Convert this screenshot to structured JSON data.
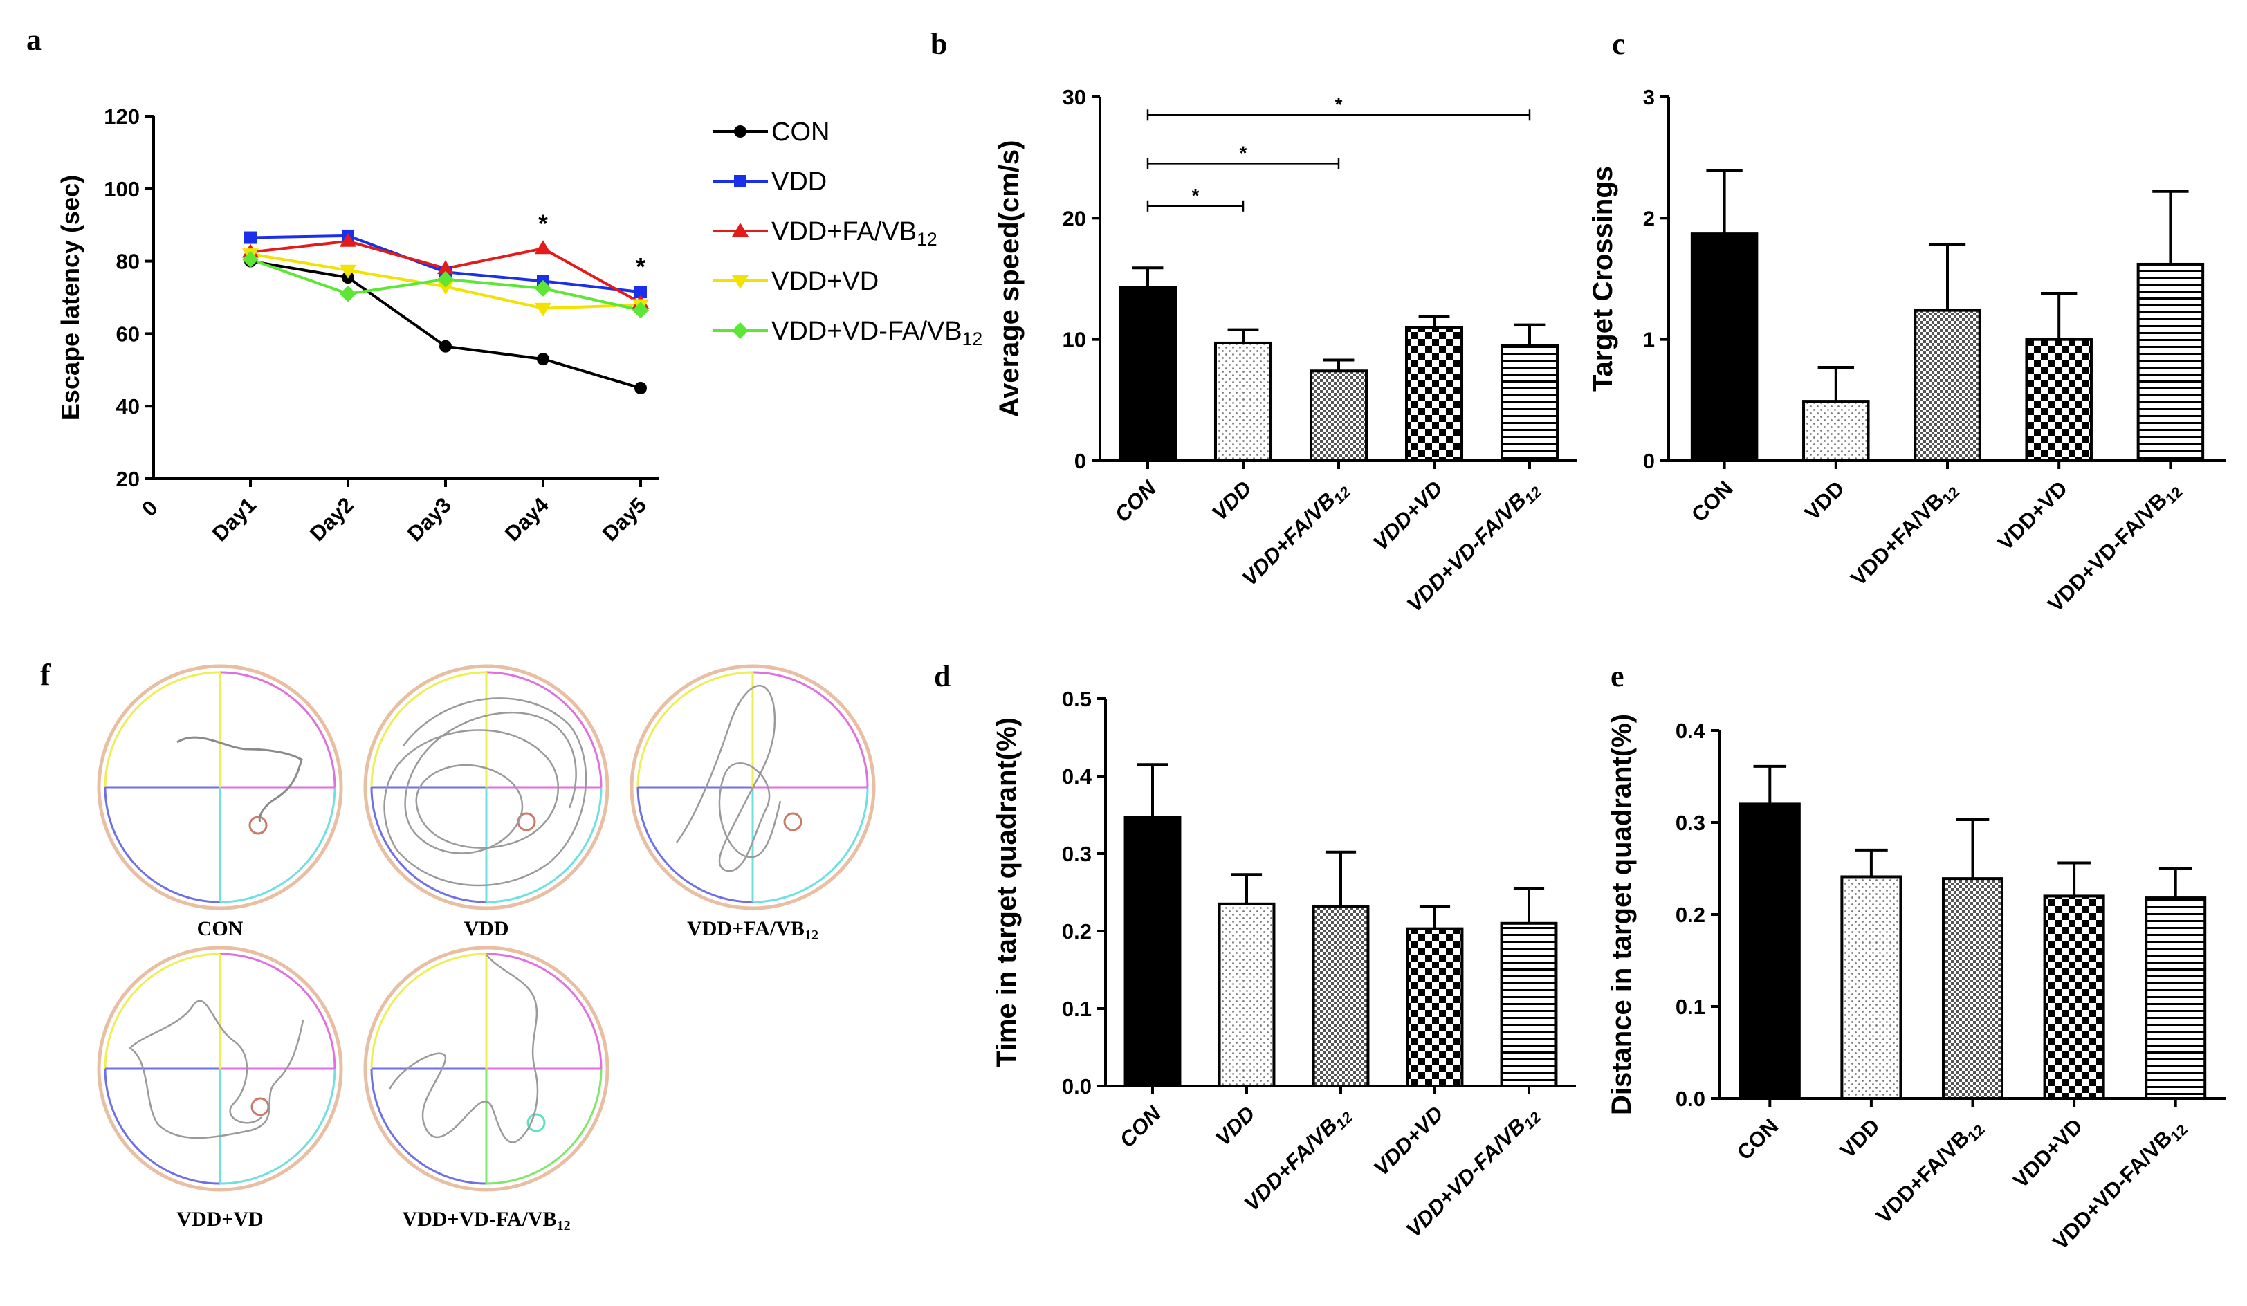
{
  "chart_data": [
    {
      "panel": "a",
      "type": "line",
      "ylabel": "Escape latency (sec)",
      "xlabel": "",
      "ylim": [
        20,
        120
      ],
      "yticks": [
        "20",
        "40",
        "60",
        "80",
        "100",
        "120"
      ],
      "x_origin_label": "0",
      "categories": [
        "Day1",
        "Day2",
        "Day3",
        "Day4",
        "Day5"
      ],
      "series": [
        {
          "name": "CON",
          "color": "#000000",
          "marker": "circle",
          "values": [
            80,
            75.5,
            56.5,
            53,
            45
          ]
        },
        {
          "name": "VDD",
          "color": "#1a2fe8",
          "marker": "square",
          "values": [
            86.5,
            87,
            77,
            74.5,
            71.5
          ]
        },
        {
          "name": "VDD+FA/VB",
          "name_sub": "12",
          "color": "#e31b1b",
          "marker": "triangle",
          "values": [
            82.5,
            85.5,
            78,
            83.5,
            68.5
          ]
        },
        {
          "name": "VDD+VD",
          "color": "#f2e200",
          "marker": "triangle-down",
          "values": [
            82,
            77.5,
            73,
            67,
            68
          ]
        },
        {
          "name": "VDD+VD-FA/VB",
          "name_sub": "12",
          "color": "#5ce635",
          "marker": "diamond",
          "values": [
            80.5,
            71,
            75,
            72.5,
            66.5
          ]
        }
      ],
      "annotations": [
        {
          "label": "*",
          "category": "Day4"
        },
        {
          "label": "*",
          "category": "Day5"
        }
      ],
      "legend": "right"
    },
    {
      "panel": "b",
      "type": "bar",
      "ylabel": "Average speed(cm/s)",
      "ylim": [
        0,
        30
      ],
      "yticks": [
        "0",
        "10",
        "20",
        "30"
      ],
      "categories": [
        "CON",
        "VDD",
        "VDD+FA/VB",
        "VDD+VD",
        "VDD+VD-FA/VB"
      ],
      "category_subs": [
        "",
        "",
        "12",
        "",
        "12"
      ],
      "values": [
        14.3,
        9.7,
        7.4,
        11.0,
        9.5
      ],
      "errors": [
        1.6,
        1.1,
        0.9,
        0.9,
        1.7
      ],
      "significance": [
        {
          "from": "CON",
          "to": "VDD",
          "label": "*",
          "y": 21
        },
        {
          "from": "CON",
          "to": "VDD+FA/VB12",
          "label": "*",
          "y": 24.5
        },
        {
          "from": "CON",
          "to": "VDD+VD-FA/VB12",
          "label": "*",
          "y": 28.5
        }
      ]
    },
    {
      "panel": "c",
      "type": "bar",
      "ylabel": "Target Crossings",
      "ylim": [
        0,
        3
      ],
      "yticks": [
        "0",
        "1",
        "2",
        "3"
      ],
      "categories": [
        "CON",
        "VDD",
        "VDD+FA/VB",
        "VDD+VD",
        "VDD+VD-FA/VB"
      ],
      "category_subs": [
        "",
        "",
        "12",
        "",
        "12"
      ],
      "values": [
        1.87,
        0.49,
        1.24,
        1.0,
        1.62
      ],
      "errors": [
        0.52,
        0.28,
        0.54,
        0.38,
        0.6
      ]
    },
    {
      "panel": "d",
      "type": "bar",
      "ylabel": "Time in target quadrant(%)",
      "ylim": [
        0,
        0.5
      ],
      "yticks": [
        "0.0",
        "0.1",
        "0.2",
        "0.3",
        "0.4",
        "0.5"
      ],
      "categories": [
        "CON",
        "VDD",
        "VDD+FA/VB",
        "VDD+VD",
        "VDD+VD-FA/VB"
      ],
      "category_subs": [
        "",
        "",
        "12",
        "",
        "12"
      ],
      "values": [
        0.347,
        0.235,
        0.232,
        0.203,
        0.21
      ],
      "errors": [
        0.068,
        0.038,
        0.07,
        0.029,
        0.045
      ]
    },
    {
      "panel": "e",
      "type": "bar",
      "ylabel": "Distance in target quadrant(%)",
      "ylim": [
        0,
        0.4
      ],
      "yticks": [
        "0.0",
        "0.1",
        "0.2",
        "0.3",
        "0.4"
      ],
      "categories": [
        "CON",
        "VDD",
        "VDD+FA/VB",
        "VDD+VD",
        "VDD+VD-FA/VB"
      ],
      "category_subs": [
        "",
        "",
        "12",
        "",
        "12"
      ],
      "values": [
        0.32,
        0.241,
        0.239,
        0.22,
        0.218
      ],
      "errors": [
        0.041,
        0.029,
        0.064,
        0.036,
        0.032
      ]
    }
  ],
  "panel_f": {
    "letter": "f",
    "arenas": [
      {
        "label": "CON",
        "label_sub": ""
      },
      {
        "label": "VDD",
        "label_sub": ""
      },
      {
        "label": "VDD+FA/VB",
        "label_sub": "12"
      },
      {
        "label": "VDD+VD",
        "label_sub": ""
      },
      {
        "label": "VDD+VD-FA/VB",
        "label_sub": "12"
      }
    ]
  }
}
